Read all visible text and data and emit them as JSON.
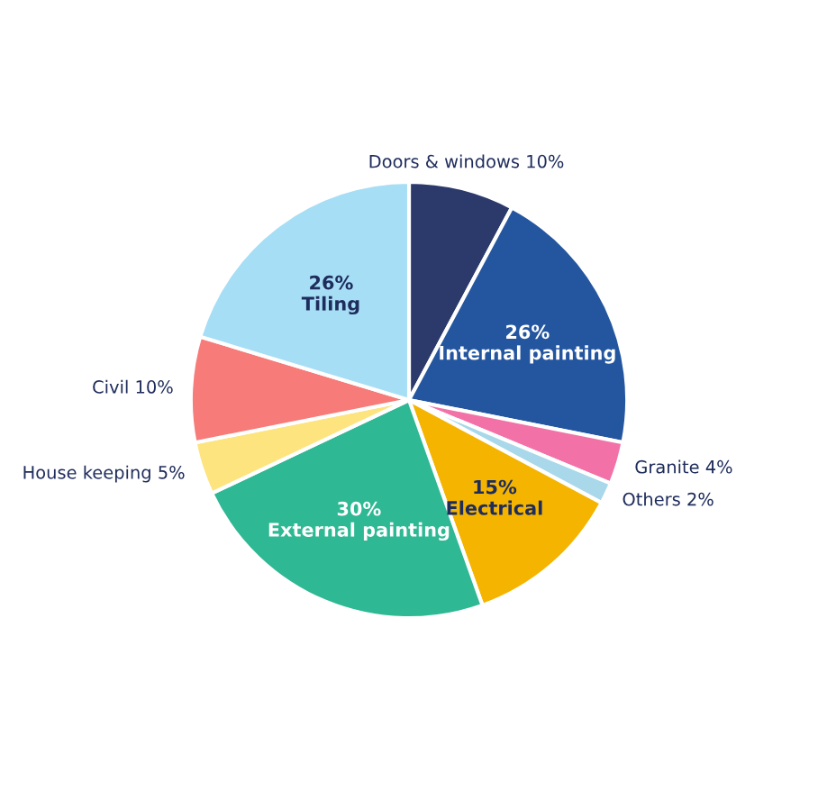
{
  "chart_data": {
    "type": "pie",
    "categories": [
      "Doors & windows",
      "Internal painting",
      "Granite",
      "Others",
      "Electrical",
      "External painting",
      "House keeping",
      "Civil",
      "Tiling"
    ],
    "values": [
      10,
      26,
      4,
      2,
      15,
      30,
      5,
      10,
      26
    ],
    "value_labels": [
      "10%",
      "26%",
      "4%",
      "2%",
      "15%",
      "30%",
      "5%",
      "10%",
      "26%"
    ],
    "colors": [
      "#2b3a6b",
      "#2456a0",
      "#f272a8",
      "#a8d8ea",
      "#f5b400",
      "#2fb894",
      "#fde47f",
      "#f77b78",
      "#a6def5"
    ],
    "legend": false
  }
}
